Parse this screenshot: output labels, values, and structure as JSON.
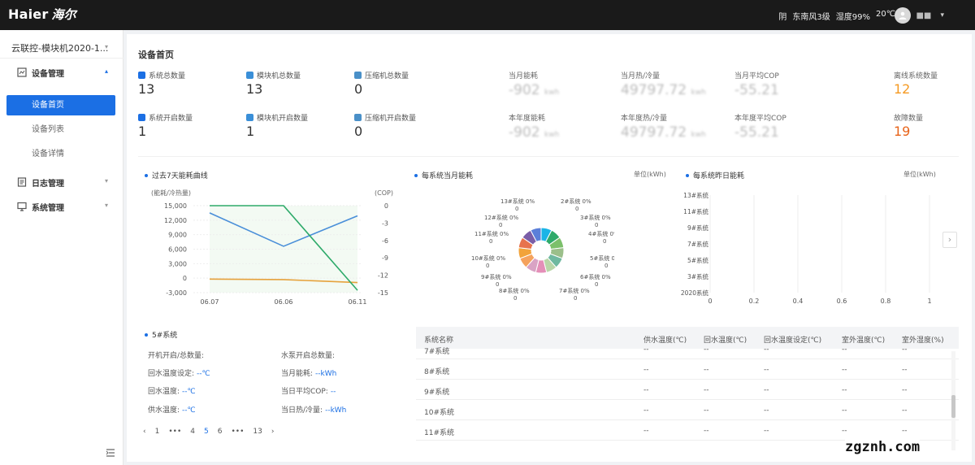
{
  "topbar": {
    "logo_en": "Haier",
    "logo_cn": "海尔",
    "weather": [
      "阴",
      "东南风3级",
      "湿度99%",
      "20℃"
    ],
    "username": "■■"
  },
  "sidebar": {
    "project": "云联控-模块机2020-1...",
    "groups": [
      {
        "label": "设备管理",
        "icon": "device-icon",
        "expanded": true
      },
      {
        "label": "日志管理",
        "icon": "log-icon",
        "expanded": false
      },
      {
        "label": "系统管理",
        "icon": "system-icon",
        "expanded": false
      }
    ],
    "device_items": [
      "设备首页",
      "设备列表",
      "设备详情"
    ],
    "active_item": "设备首页"
  },
  "page": {
    "title": "设备首页"
  },
  "stats": [
    {
      "label": "系统总数量",
      "value": "13"
    },
    {
      "label": "模块机总数量",
      "value": "13"
    },
    {
      "label": "压缩机总数量",
      "value": "0"
    },
    {
      "label": "系统开启数量",
      "value": "1"
    },
    {
      "label": "模块机开启数量",
      "value": "1"
    },
    {
      "label": "压缩机开启数量",
      "value": "0"
    }
  ],
  "metrics": [
    {
      "label": "当月能耗",
      "value": "-902",
      "unit": "kwh"
    },
    {
      "label": "当月热/冷量",
      "value": "49797.72",
      "unit": "kwh"
    },
    {
      "label": "当月平均COP",
      "value": "-55.21",
      "unit": ""
    },
    {
      "label": "本年度能耗",
      "value": "-902",
      "unit": "kwh"
    },
    {
      "label": "本年度热/冷量",
      "value": "49797.72",
      "unit": "kwh"
    },
    {
      "label": "本年度平均COP",
      "value": "-55.21",
      "unit": ""
    }
  ],
  "alarms": [
    {
      "label": "离线系统数量",
      "value": "12",
      "color": "#f59a23"
    },
    {
      "label": "故障数量",
      "value": "19",
      "color": "#e8641a"
    }
  ],
  "line_chart": {
    "title": "过去7天能耗曲线",
    "ylabel_left": "(能耗/冷热量)",
    "ylabel_right": "(COP)",
    "chart_data": {
      "type": "line",
      "categories": [
        "06.07",
        "06.06",
        "06.11"
      ],
      "left_ticks": [
        "15,000",
        "12,000",
        "9,000",
        "6,000",
        "3,000",
        "0",
        "-3,000"
      ],
      "right_ticks": [
        "0",
        "-3",
        "-6",
        "-9",
        "-12",
        "-15"
      ],
      "ylim_left": [
        -3000,
        15000
      ],
      "ylim_right": [
        -15,
        0
      ],
      "series": [
        {
          "axis": "left",
          "color": "#4a8fd9",
          "values": [
            13500,
            6600,
            12900
          ]
        },
        {
          "axis": "left",
          "color": "#e6a23c",
          "values": [
            -200,
            -300,
            -900
          ]
        },
        {
          "axis": "right",
          "color": "#2eaa6a",
          "values": [
            0,
            0,
            -14.6
          ]
        }
      ]
    }
  },
  "donut_chart": {
    "title": "每系统当月能耗",
    "unit": "单位(kWh)",
    "chart_data": {
      "type": "pie",
      "labels": [
        {
          "name": "13#系统",
          "pct": "0%",
          "val": "0"
        },
        {
          "name": "2#系统",
          "pct": "0%",
          "val": "0"
        },
        {
          "name": "12#系统",
          "pct": "0%",
          "val": "0"
        },
        {
          "name": "3#系统",
          "pct": "0%",
          "val": "0"
        },
        {
          "name": "11#系统",
          "pct": "0%",
          "val": "0"
        },
        {
          "name": "4#系统",
          "pct": "0%",
          "val": "0"
        },
        {
          "name": "10#系统",
          "pct": "0%",
          "val": "0"
        },
        {
          "name": "5#系统",
          "pct": "0%",
          "val": "0"
        },
        {
          "name": "9#系统",
          "pct": "0%",
          "val": "0"
        },
        {
          "name": "6#系统",
          "pct": "0%",
          "val": "0"
        },
        {
          "name": "8#系统",
          "pct": "0%",
          "val": "0"
        },
        {
          "name": "7#系统",
          "pct": "0%",
          "val": "0"
        }
      ],
      "colors": [
        "#1ab4e6",
        "#2eaa6a",
        "#7cc06b",
        "#9bbf8a",
        "#6fb9a0",
        "#b9d6a8",
        "#e48fb8",
        "#d9a3c4",
        "#f5a25d",
        "#f2a33a",
        "#e7734d",
        "#7b5ea7",
        "#5b7fd9"
      ]
    }
  },
  "bar_chart": {
    "title": "每系统昨日能耗",
    "unit": "单位(kWh)",
    "chart_data": {
      "type": "bar",
      "categories": [
        "13#系统",
        "11#系统",
        "9#系统",
        "7#系统",
        "5#系统",
        "3#系统",
        "2020系统"
      ],
      "x_ticks": [
        "0",
        "0.2",
        "0.4",
        "0.6",
        "0.8",
        "1"
      ],
      "xlim": [
        0,
        1
      ],
      "values": [
        0,
        0,
        0,
        0,
        0,
        0,
        0
      ]
    }
  },
  "system_detail": {
    "title": "5#系统",
    "rows": [
      {
        "label": "开机开启/总数量:",
        "value": ""
      },
      {
        "label": "水泵开启总数量:",
        "value": ""
      },
      {
        "label": "回水温度设定:",
        "value": "--℃"
      },
      {
        "label": "当月能耗:",
        "value": "--kWh"
      },
      {
        "label": "回水温度:",
        "value": "--℃"
      },
      {
        "label": "当日平均COP:",
        "value": "--"
      },
      {
        "label": "供水温度:",
        "value": "--℃"
      },
      {
        "label": "当日热/冷量:",
        "value": "--kWh"
      }
    ]
  },
  "pager": {
    "items": [
      "1",
      "•••",
      "4",
      "5",
      "6",
      "•••",
      "13"
    ],
    "current": "5"
  },
  "table": {
    "headers": [
      "系统名称",
      "供水温度(℃)",
      "回水温度(℃)",
      "回水温度设定(℃)",
      "室外温度(℃)",
      "室外湿度(%)"
    ],
    "rows": [
      [
        "7#系统",
        "--",
        "--",
        "--",
        "--",
        "--"
      ],
      [
        "8#系统",
        "--",
        "--",
        "--",
        "--",
        "--"
      ],
      [
        "9#系统",
        "--",
        "--",
        "--",
        "--",
        "--"
      ],
      [
        "10#系统",
        "--",
        "--",
        "--",
        "--",
        "--"
      ],
      [
        "11#系统",
        "--",
        "--",
        "--",
        "--",
        "--"
      ]
    ]
  },
  "watermark": "zgznh.com"
}
